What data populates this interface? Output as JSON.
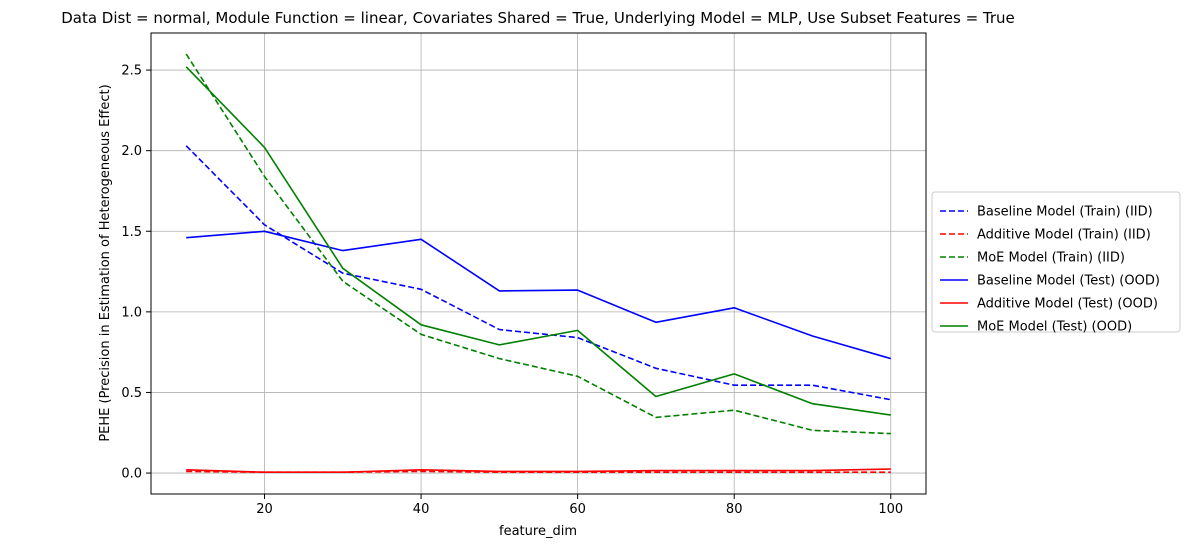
{
  "chart_data": {
    "type": "line",
    "title": "Data Dist = normal, Module Function = linear, Covariates Shared = True, Underlying Model = MLP, Use Subset Features = True",
    "xlabel": "feature_dim",
    "ylabel": "PEHE (Precision in Estimation of Heterogeneous Effect)",
    "xlim": [
      5.5,
      104.5
    ],
    "ylim": [
      -0.13,
      2.73
    ],
    "xticks": [
      20,
      40,
      60,
      80,
      100
    ],
    "yticks": [
      0.0,
      0.5,
      1.0,
      1.5,
      2.0,
      2.5
    ],
    "grid": true,
    "legend_position": "center-right outside",
    "x": [
      10,
      20,
      30,
      40,
      50,
      60,
      70,
      80,
      90,
      100
    ],
    "series": [
      {
        "name": "Baseline Model (Train) (IID)",
        "color": "#0000ff",
        "style": "dashed",
        "values": [
          2.03,
          1.54,
          1.24,
          1.14,
          0.89,
          0.84,
          0.65,
          0.545,
          0.545,
          0.455
        ]
      },
      {
        "name": "Additive Model (Train) (IID)",
        "color": "#ff0000",
        "style": "dashed",
        "values": [
          0.01,
          0.005,
          0.005,
          0.01,
          0.005,
          0.005,
          0.005,
          0.005,
          0.005,
          0.005
        ]
      },
      {
        "name": "MoE Model (Train) (IID)",
        "color": "#008000",
        "style": "dashed",
        "values": [
          2.6,
          1.84,
          1.19,
          0.86,
          0.71,
          0.6,
          0.345,
          0.39,
          0.265,
          0.245
        ]
      },
      {
        "name": "Baseline Model (Test) (OOD)",
        "color": "#0000ff",
        "style": "solid",
        "values": [
          1.46,
          1.5,
          1.38,
          1.45,
          1.13,
          1.135,
          0.935,
          1.025,
          0.85,
          0.71
        ]
      },
      {
        "name": "Additive Model (Test) (OOD)",
        "color": "#ff0000",
        "style": "solid",
        "values": [
          0.02,
          0.005,
          0.005,
          0.02,
          0.01,
          0.01,
          0.015,
          0.015,
          0.015,
          0.025
        ]
      },
      {
        "name": "MoE Model (Test) (OOD)",
        "color": "#008000",
        "style": "solid",
        "values": [
          2.52,
          2.02,
          1.27,
          0.92,
          0.795,
          0.885,
          0.475,
          0.615,
          0.43,
          0.36
        ]
      }
    ]
  }
}
